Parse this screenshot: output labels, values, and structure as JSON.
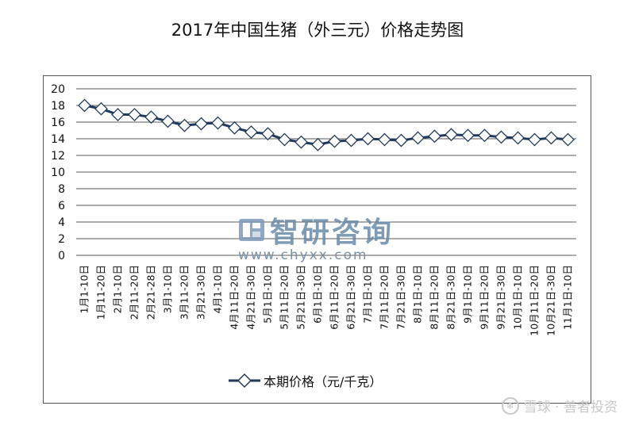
{
  "chart_data": {
    "type": "line",
    "title": "2017年中国生猪（外三元）价格走势图",
    "ylim": [
      0,
      20
    ],
    "y_ticks": [
      0,
      2,
      4,
      6,
      8,
      10,
      12,
      14,
      16,
      18,
      20
    ],
    "grid": "horizontal",
    "legend_position": "bottom",
    "categories": [
      "1月1-10日",
      "1月11-20日",
      "2月1-10日",
      "2月11-20日",
      "2月21-28日",
      "3月1-10日",
      "3月11-20日",
      "3月21-30日",
      "4月1-10日",
      "4月11日-20日",
      "4月21日-30日",
      "5月1日-10日",
      "5月11日-20日",
      "5月21日-30日",
      "6月1日-10日",
      "6月11日-20日",
      "6月21日-30日",
      "7月1日-10日",
      "7月11日-20日",
      "7月21日-30日",
      "8月1日-10日",
      "8月11日-20日",
      "8月21日-30日",
      "9月1日-10日",
      "9月11日-20日",
      "9月21日-30日",
      "10月1日-10日",
      "10月11日-20日",
      "10月21日-30日",
      "11月1日-10日"
    ],
    "series": [
      {
        "name": "本期价格（元/千克）",
        "color": "#1f3a5c",
        "values": [
          18.0,
          17.6,
          16.9,
          16.9,
          16.6,
          16.1,
          15.6,
          15.8,
          15.9,
          15.3,
          14.8,
          14.6,
          13.9,
          13.6,
          13.3,
          13.7,
          13.8,
          14.0,
          13.9,
          13.8,
          14.1,
          14.3,
          14.5,
          14.4,
          14.4,
          14.2,
          14.1,
          13.9,
          14.1,
          13.9
        ]
      }
    ]
  },
  "watermark": {
    "brand": "智研咨询",
    "url": "www.chyxx.com",
    "color": "#6b8aa8"
  },
  "credit": {
    "text": "雪球 · 善者投资",
    "icon": "snowball-icon"
  }
}
